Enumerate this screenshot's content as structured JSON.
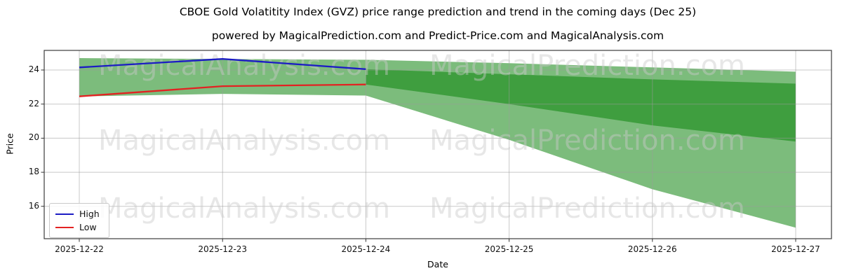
{
  "title": "CBOE Gold Volatitity Index (GVZ) price range prediction and trend in the coming days (Dec 25)",
  "subtitle": "powered by MagicalPrediction.com and Predict-Price.com and MagicalAnalysis.com",
  "watermarks": {
    "left": "MagicalAnalysis.com",
    "right": "MagicalPrediction.com"
  },
  "chart_data": {
    "type": "area",
    "title": "CBOE Gold Volatitity Index (GVZ) price range prediction and trend in the coming days (Dec 25)",
    "xlabel": "Date",
    "ylabel": "Price",
    "categories": [
      "2025-12-22",
      "2025-12-23",
      "2025-12-24",
      "2025-12-25",
      "2025-12-26",
      "2025-12-27"
    ],
    "yticks": [
      16,
      18,
      20,
      22,
      24
    ],
    "ylim": [
      14.1,
      25.15
    ],
    "xlim_pad": [
      0.245,
      0.25
    ],
    "grid": true,
    "colors": {
      "outer_band": "#7cbc7c",
      "inner_band": "#3f9e3f",
      "high_line": "#1c1cc4",
      "low_line": "#e32222",
      "gridline": "#9a9a9a",
      "axis_border": "#3c3c3c",
      "watermark": "#c9c9c9"
    },
    "bands": [
      {
        "name": "outer-range",
        "color_key": "outer_band",
        "x_indices": [
          0,
          1,
          2,
          3,
          4,
          5
        ],
        "top": [
          24.7,
          24.65,
          24.6,
          24.4,
          24.15,
          23.9
        ],
        "bottom": [
          22.45,
          22.6,
          22.5,
          19.9,
          17.0,
          14.75
        ]
      },
      {
        "name": "inner-range",
        "color_key": "inner_band",
        "x_indices": [
          2,
          3,
          4,
          5
        ],
        "top": [
          24.05,
          23.75,
          23.45,
          23.2
        ],
        "bottom": [
          23.15,
          22.0,
          20.75,
          19.8
        ]
      }
    ],
    "series": [
      {
        "name": "High",
        "color_key": "high_line",
        "x_indices": [
          0,
          1,
          2
        ],
        "values": [
          24.15,
          24.65,
          24.05
        ]
      },
      {
        "name": "Low",
        "color_key": "low_line",
        "x_indices": [
          0,
          1,
          2
        ],
        "values": [
          22.45,
          23.05,
          23.15
        ]
      }
    ],
    "legend": {
      "position": "lower left",
      "items": [
        {
          "label": "High",
          "color_key": "high_line"
        },
        {
          "label": "Low",
          "color_key": "low_line"
        }
      ]
    }
  }
}
